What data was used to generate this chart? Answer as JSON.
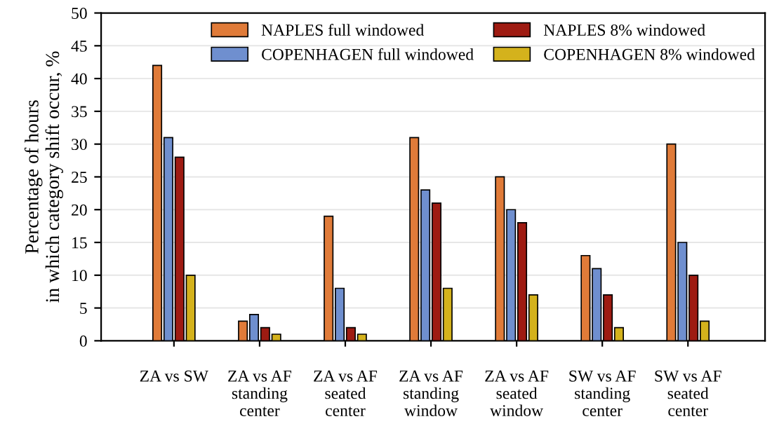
{
  "chart_data": {
    "type": "bar",
    "ylabel": "Percentage of hours\nin which category shift occur, %",
    "categories": [
      "ZA vs SW",
      "ZA vs AF\nstanding\ncenter",
      "ZA vs AF\nseated\ncenter",
      "ZA vs AF\nstanding\nwindow",
      "ZA vs AF\nseated\nwindow",
      "SW vs AF\nstanding\ncenter",
      "SW vs AF\nseated\ncenter"
    ],
    "series": [
      {
        "name": "NAPLES full windowed",
        "color": "#e07b39",
        "values": [
          42,
          3,
          19,
          31,
          25,
          13,
          30
        ]
      },
      {
        "name": "COPENHAGEN full windowed",
        "color": "#6f8fcf",
        "values": [
          31,
          4,
          8,
          23,
          20,
          11,
          15
        ]
      },
      {
        "name": "NAPLES 8% windowed",
        "color": "#9e1b12",
        "values": [
          28,
          2,
          2,
          21,
          18,
          7,
          10
        ]
      },
      {
        "name": "COPENHAGEN 8% windowed",
        "color": "#d4b21c",
        "values": [
          10,
          1,
          1,
          8,
          7,
          2,
          3
        ]
      }
    ],
    "ylim": [
      0,
      50
    ],
    "yticks": [
      0,
      5,
      10,
      15,
      20,
      25,
      30,
      35,
      40,
      45,
      50
    ],
    "grid": "y",
    "legend": "top right"
  }
}
